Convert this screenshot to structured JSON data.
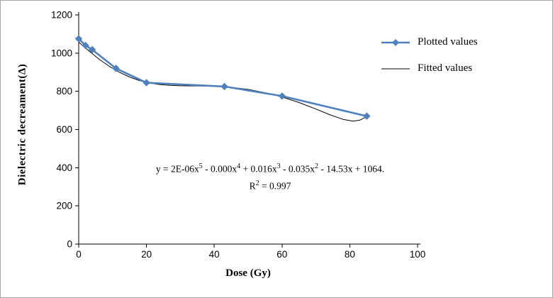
{
  "chart_data": {
    "type": "line",
    "title": "",
    "xlabel": "Dose  (Gy)",
    "ylabel": "Dielectric  decreament(Δ)",
    "xlim": [
      0,
      100
    ],
    "ylim": [
      0,
      1200
    ],
    "x_ticks": [
      0,
      20,
      40,
      60,
      80,
      100
    ],
    "y_ticks": [
      0,
      200,
      400,
      600,
      800,
      1000,
      1200
    ],
    "grid": false,
    "legend_position": "right",
    "series": [
      {
        "name": "Plotted values",
        "type": "line",
        "marker": "diamond",
        "color": "#4f81bd",
        "x": [
          0,
          2,
          4,
          11,
          20,
          43,
          60,
          85
        ],
        "y": [
          1075,
          1040,
          1018,
          920,
          845,
          825,
          775,
          670
        ]
      },
      {
        "name": "Fitted values",
        "type": "line",
        "marker": "none",
        "color": "#000000",
        "x": [
          0,
          3,
          6,
          9,
          12,
          15,
          18,
          21,
          24,
          27,
          30,
          35,
          40,
          45,
          50,
          55,
          60,
          65,
          70,
          74,
          78,
          81,
          83,
          85
        ],
        "y": [
          1058,
          1012,
          968,
          931,
          900,
          875,
          856,
          843,
          835,
          831,
          829,
          828,
          826,
          821,
          810,
          793,
          770,
          741,
          707,
          678,
          653,
          644,
          649,
          668
        ]
      }
    ],
    "annotations": {
      "equation": "y = 2E-06x^5 - 0.000x^4 + 0.016x^3 - 0.035x^2 - 14.53x + 1064.",
      "r_squared": "R^2 = 0.997"
    }
  }
}
